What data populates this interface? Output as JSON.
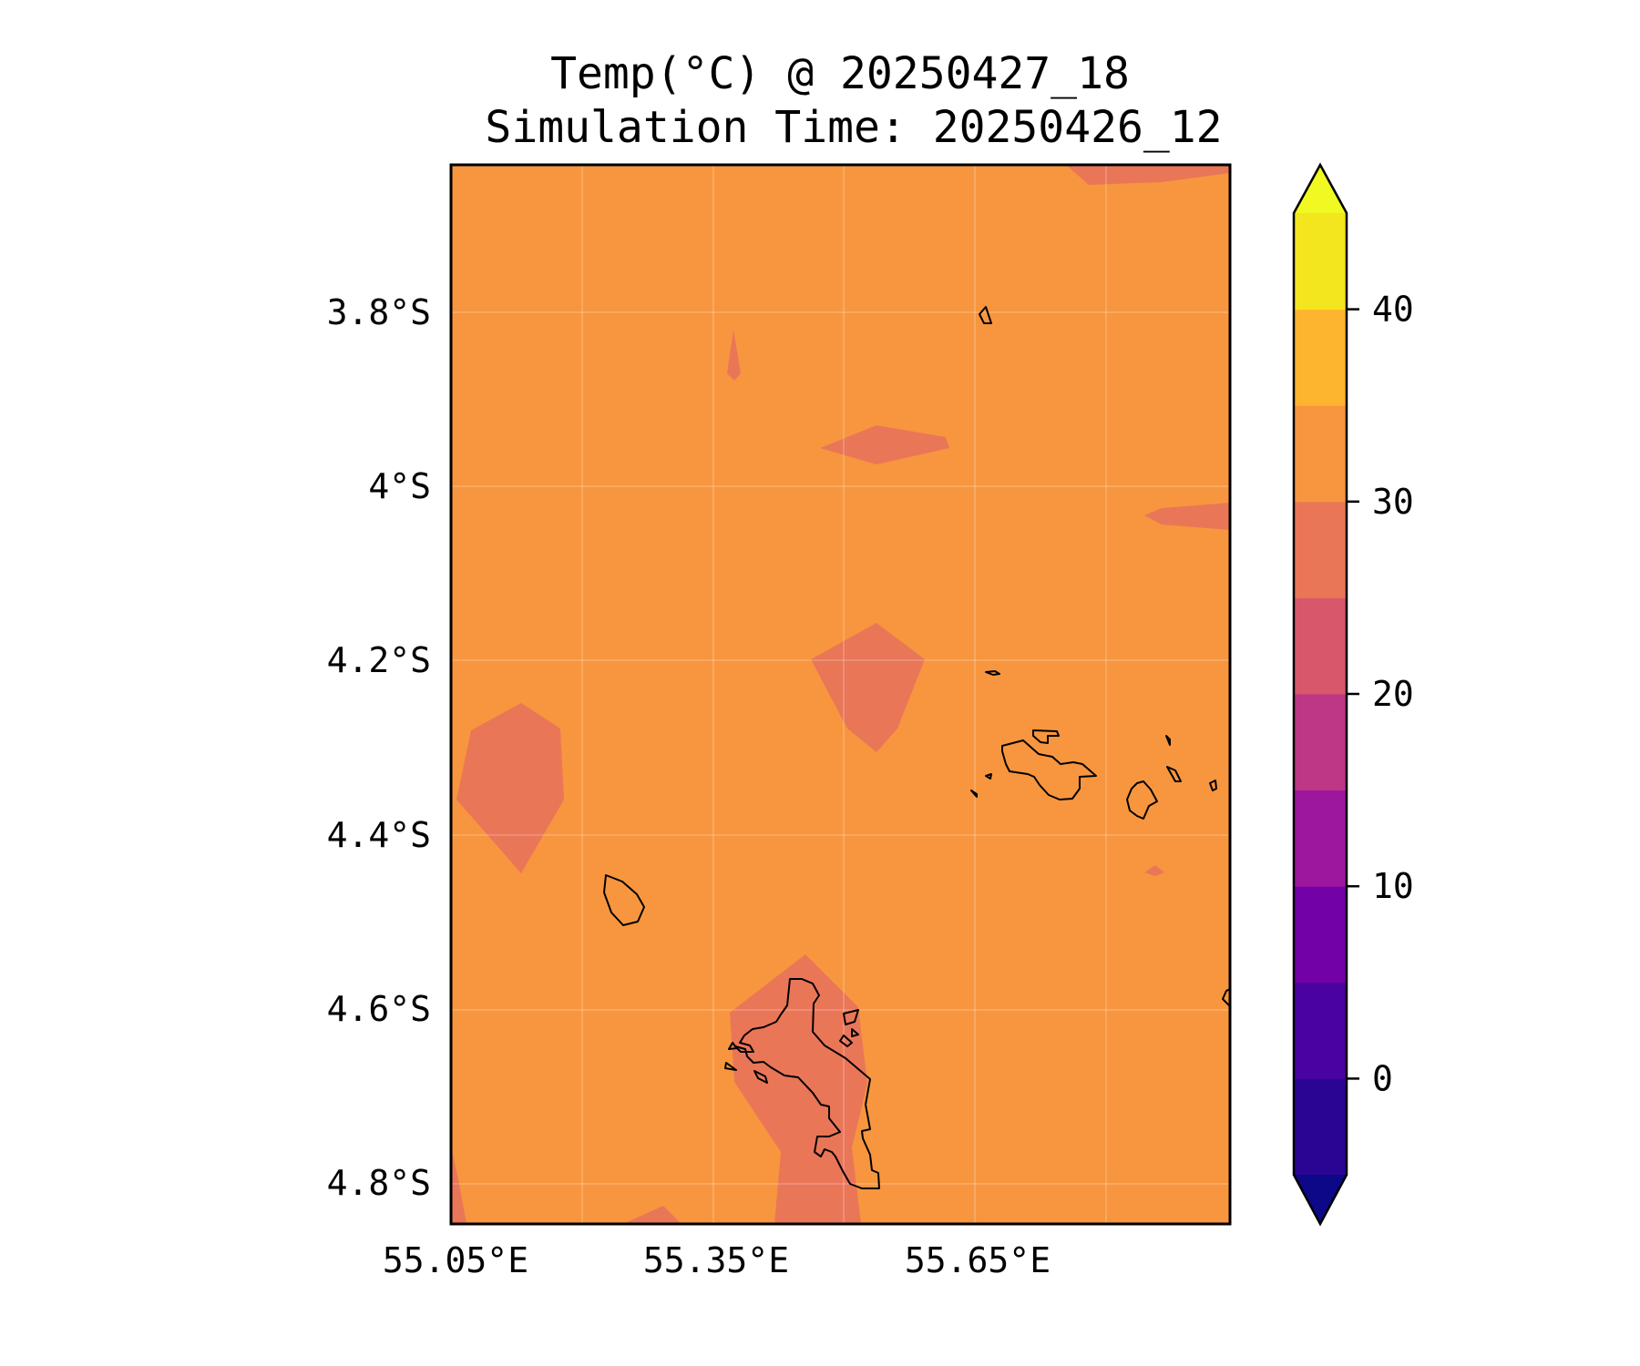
{
  "title": {
    "line1": "Temp(°C) @ 20250427_18",
    "line2": "Simulation Time: 20250426_12"
  },
  "map": {
    "background_color": "#f7963f",
    "patch_color": "#ea7658",
    "coastline_color": "#000000"
  },
  "axes": {
    "x_ticks": [
      {
        "value": 55.05,
        "label": "55.05°E"
      },
      {
        "value": 55.35,
        "label": "55.35°E"
      },
      {
        "value": 55.65,
        "label": "55.65°E"
      }
    ],
    "y_ticks": [
      {
        "value": -3.8,
        "label": "3.8°S"
      },
      {
        "value": -4.0,
        "label": "4°S"
      },
      {
        "value": -4.2,
        "label": "4.2°S"
      },
      {
        "value": -4.4,
        "label": "4.4°S"
      },
      {
        "value": -4.6,
        "label": "4.6°S"
      },
      {
        "value": -4.8,
        "label": "4.8°S"
      }
    ]
  },
  "colorbar": {
    "ticks": [
      {
        "value": 0,
        "label": "0"
      },
      {
        "value": 10,
        "label": "10"
      },
      {
        "value": 20,
        "label": "20"
      },
      {
        "value": 30,
        "label": "30"
      },
      {
        "value": 40,
        "label": "40"
      }
    ],
    "levels": [
      -5,
      0,
      5,
      10,
      15,
      20,
      25,
      30,
      35,
      40,
      45
    ],
    "under_color": "#0d0887",
    "over_color": "#f0f921",
    "band_colors": [
      "#2a0593",
      "#4a02a0",
      "#7201a8",
      "#9c179e",
      "#bd3786",
      "#d8576b",
      "#ea7658",
      "#f7963f",
      "#fdb42f",
      "#f4e61e"
    ]
  }
}
